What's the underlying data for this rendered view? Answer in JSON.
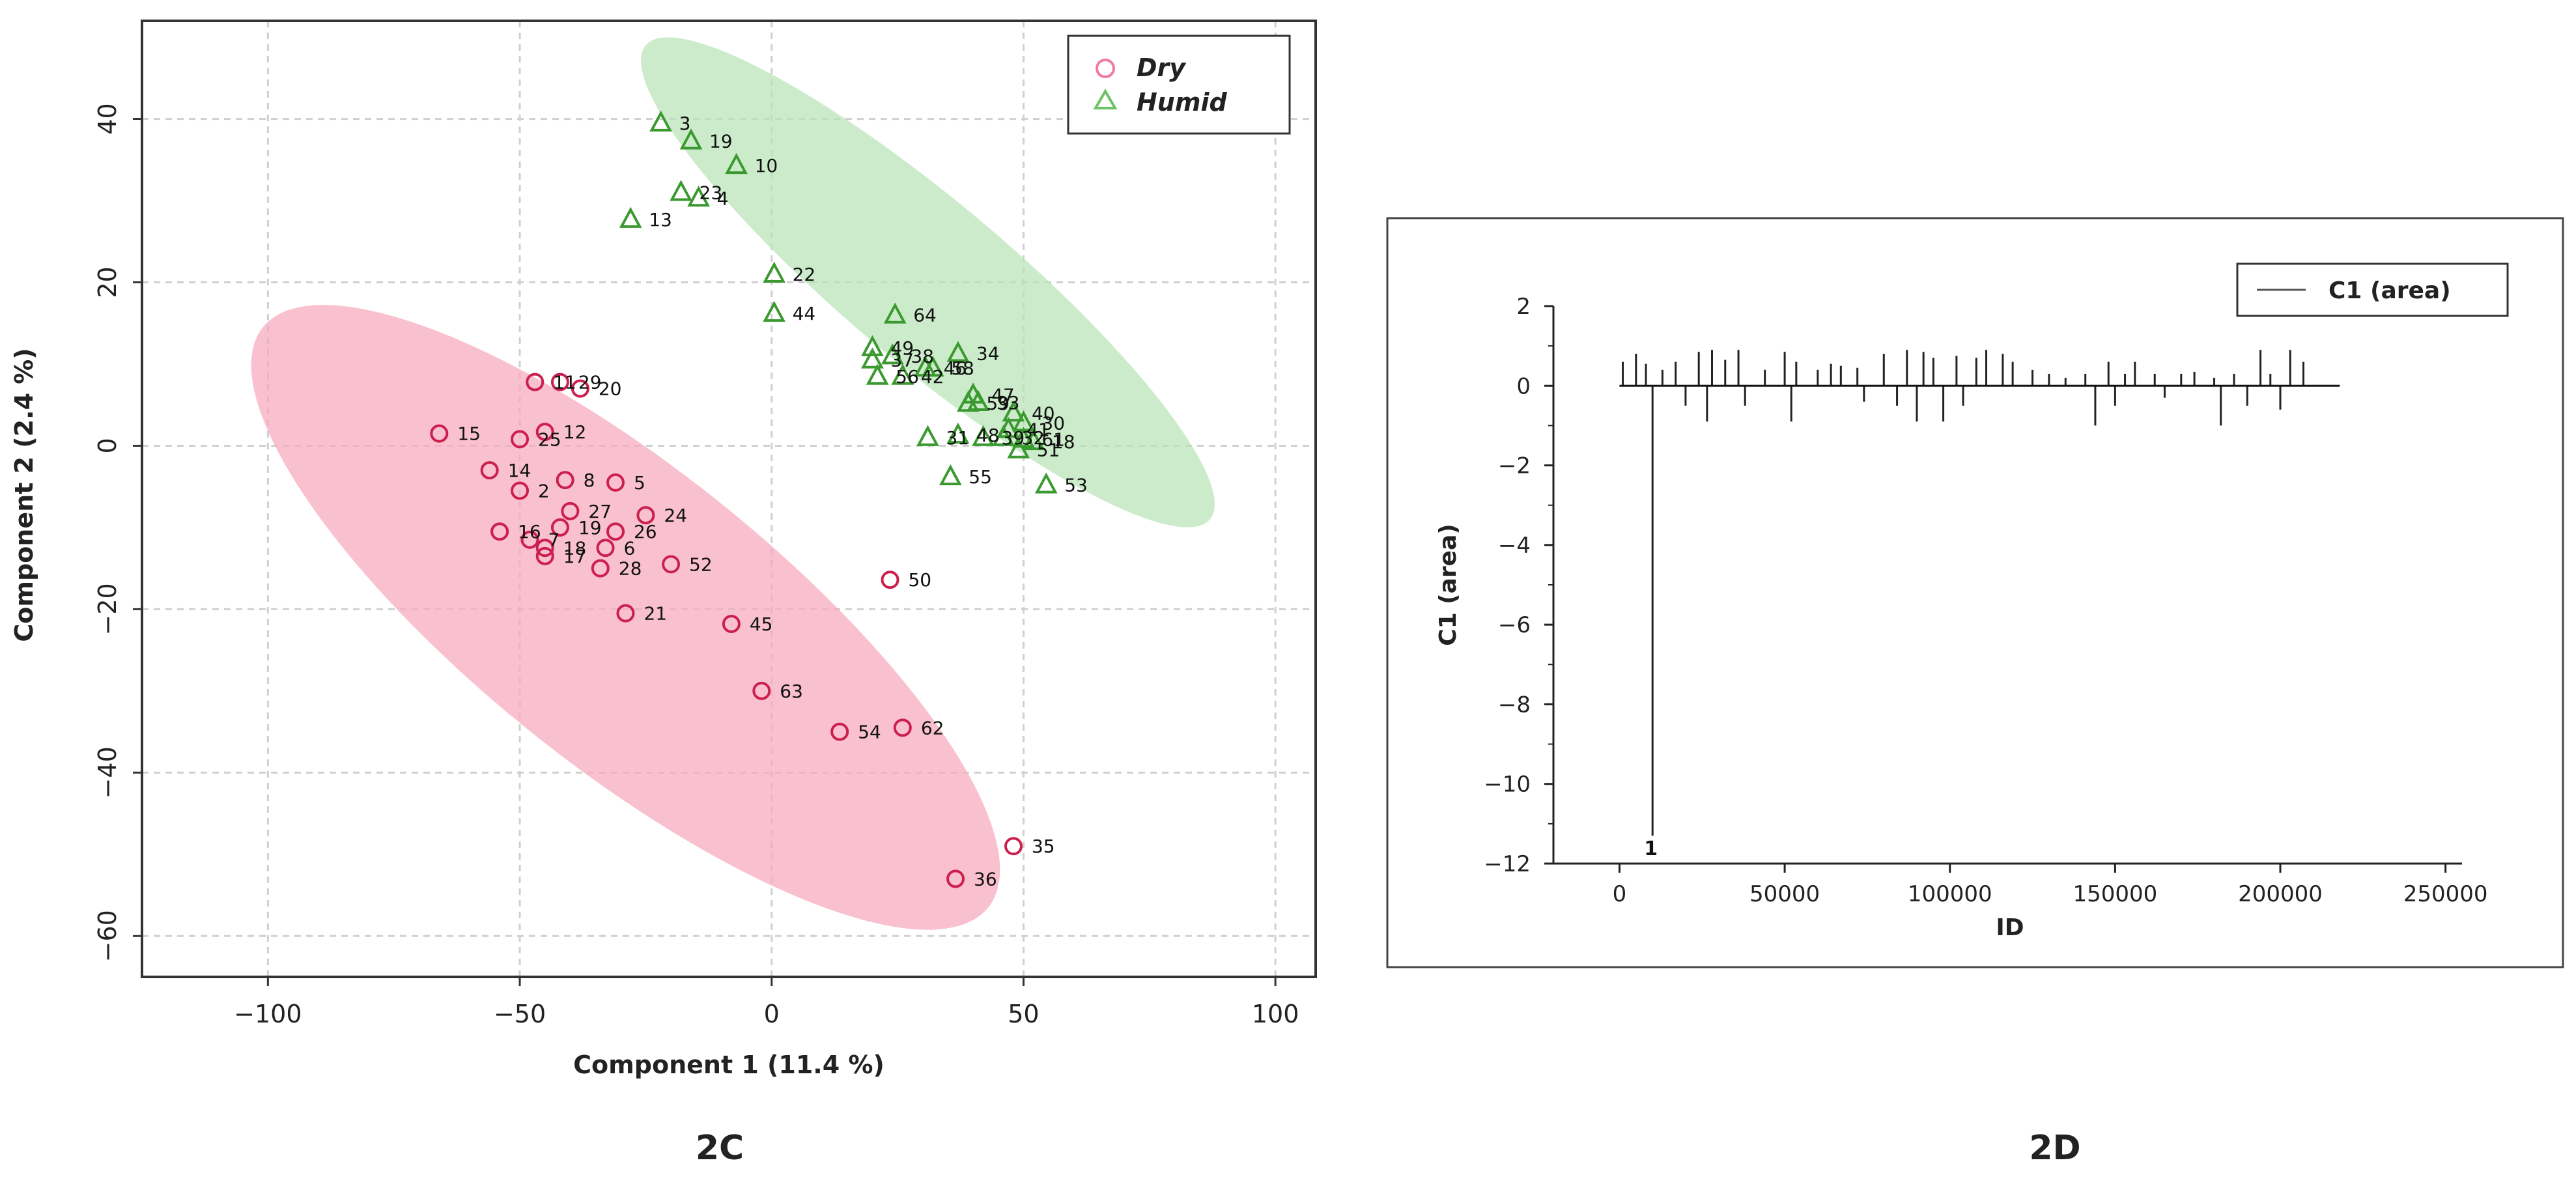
{
  "chart_data": [
    {
      "type": "scatter",
      "panel_label": "2C",
      "xlabel": "Component 1 (11.4 %)",
      "ylabel": "Component 2 (2.4 %)",
      "xlim": [
        -125,
        108
      ],
      "ylim": [
        -65,
        52
      ],
      "xticks": [
        -100,
        -50,
        0,
        50,
        100
      ],
      "yticks": [
        40,
        20,
        0,
        -20,
        -40,
        -60
      ],
      "xtick_labels": [
        "−100",
        "−50",
        "0",
        "50",
        "100"
      ],
      "ytick_labels": [
        "40",
        "20",
        "0",
        "−20",
        "−40",
        "−60"
      ],
      "grid": true,
      "legend": {
        "position": "top-right",
        "entries": [
          "Dry",
          "Humid"
        ]
      },
      "ellipses": [
        {
          "series": "Dry",
          "color": "#f7a9bd",
          "center": [
            -29,
            -21
          ],
          "points_on_edge": [
            [
              -100,
              21
            ],
            [
              44,
              -50
            ]
          ]
        },
        {
          "series": "Humid",
          "color": "#b9e3b5",
          "center": [
            31,
            20
          ],
          "points_on_edge": [
            [
              -32,
              40
            ],
            [
              80,
              -18
            ]
          ]
        }
      ],
      "series": [
        {
          "name": "Dry",
          "marker": "circle",
          "color": "#cc1f4e",
          "points": [
            {
              "x": -66,
              "y": 1.5,
              "label": "15"
            },
            {
              "x": -47,
              "y": 7.8,
              "label": "11"
            },
            {
              "x": -42,
              "y": 7.8,
              "label": "29"
            },
            {
              "x": -38,
              "y": 7,
              "label": "20"
            },
            {
              "x": -45,
              "y": 1.7,
              "label": "12"
            },
            {
              "x": -50,
              "y": 0.8,
              "label": "25"
            },
            {
              "x": -56,
              "y": -3,
              "label": "14"
            },
            {
              "x": -50,
              "y": -5.5,
              "label": "2"
            },
            {
              "x": -41,
              "y": -4.2,
              "label": "8"
            },
            {
              "x": -31,
              "y": -4.5,
              "label": "5"
            },
            {
              "x": -40,
              "y": -8,
              "label": "27"
            },
            {
              "x": -25,
              "y": -8.5,
              "label": "24"
            },
            {
              "x": -54,
              "y": -10.5,
              "label": "16"
            },
            {
              "x": -42,
              "y": -10,
              "label": "19"
            },
            {
              "x": -31,
              "y": -10.5,
              "label": "26"
            },
            {
              "x": -48,
              "y": -11.5,
              "label": "7"
            },
            {
              "x": -45,
              "y": -12.5,
              "label": "18"
            },
            {
              "x": -45,
              "y": -13.5,
              "label": "17"
            },
            {
              "x": -33,
              "y": -12.5,
              "label": "6"
            },
            {
              "x": -34,
              "y": -15,
              "label": "28"
            },
            {
              "x": -20,
              "y": -14.5,
              "label": "52"
            },
            {
              "x": -29,
              "y": -20.5,
              "label": "21"
            },
            {
              "x": -8,
              "y": -21.8,
              "label": "45"
            },
            {
              "x": 23.5,
              "y": -16.4,
              "label": "50"
            },
            {
              "x": -2,
              "y": -30,
              "label": "63"
            },
            {
              "x": 13.5,
              "y": -35,
              "label": "54"
            },
            {
              "x": 26,
              "y": -34.5,
              "label": "62"
            },
            {
              "x": 48,
              "y": -49,
              "label": "35"
            },
            {
              "x": 36.5,
              "y": -53,
              "label": "36"
            }
          ]
        },
        {
          "name": "Humid",
          "marker": "triangle",
          "color": "#3a9a2f",
          "points": [
            {
              "x": -22,
              "y": 39.5,
              "label": "3"
            },
            {
              "x": -16,
              "y": 37.3,
              "label": "19"
            },
            {
              "x": -7,
              "y": 34.3,
              "label": "10"
            },
            {
              "x": -18,
              "y": 31,
              "label": "23"
            },
            {
              "x": -14.5,
              "y": 30.3,
              "label": "4"
            },
            {
              "x": -28,
              "y": 27.7,
              "label": "13"
            },
            {
              "x": 0.5,
              "y": 21,
              "label": "22"
            },
            {
              "x": 0.5,
              "y": 16.2,
              "label": "44"
            },
            {
              "x": 24.5,
              "y": 16,
              "label": "64"
            },
            {
              "x": 20,
              "y": 12,
              "label": "49"
            },
            {
              "x": 24,
              "y": 11,
              "label": "38"
            },
            {
              "x": 37,
              "y": 11.3,
              "label": "34"
            },
            {
              "x": 20,
              "y": 10.5,
              "label": "37"
            },
            {
              "x": 30.5,
              "y": 9.5,
              "label": "46"
            },
            {
              "x": 32,
              "y": 9.5,
              "label": "58"
            },
            {
              "x": 21,
              "y": 8.5,
              "label": "56"
            },
            {
              "x": 26,
              "y": 8.5,
              "label": "42"
            },
            {
              "x": 40,
              "y": 6.2,
              "label": "47"
            },
            {
              "x": 39,
              "y": 5.2,
              "label": "59"
            },
            {
              "x": 41,
              "y": 5.3,
              "label": "33"
            },
            {
              "x": 48,
              "y": 4,
              "label": "40"
            },
            {
              "x": 50,
              "y": 2.8,
              "label": "30"
            },
            {
              "x": 47,
              "y": 2,
              "label": "41"
            },
            {
              "x": 31,
              "y": 1,
              "label": "31"
            },
            {
              "x": 37,
              "y": 1.3,
              "label": "48"
            },
            {
              "x": 42,
              "y": 1,
              "label": "39"
            },
            {
              "x": 46,
              "y": 1,
              "label": "32"
            },
            {
              "x": 50,
              "y": 0.8,
              "label": "61"
            },
            {
              "x": 52,
              "y": 0.5,
              "label": "18"
            },
            {
              "x": 49,
              "y": -0.5,
              "label": "51"
            },
            {
              "x": 35.5,
              "y": -3.8,
              "label": "55"
            },
            {
              "x": 54.5,
              "y": -4.8,
              "label": "53"
            }
          ]
        }
      ]
    },
    {
      "type": "bar",
      "panel_label": "2D",
      "xlabel": "ID",
      "ylabel": "C1 (area)",
      "xlim": [
        -20000,
        255000
      ],
      "ylim": [
        -12,
        2
      ],
      "xticks": [
        0,
        50000,
        100000,
        150000,
        200000,
        250000
      ],
      "yticks": [
        2,
        0,
        -2,
        -4,
        -6,
        -8,
        -10,
        -12
      ],
      "xtick_labels": [
        "0",
        "50000",
        "100000",
        "150000",
        "200000",
        "250000"
      ],
      "ytick_labels": [
        "2",
        "0",
        "−2",
        "−4",
        "−6",
        "−8",
        "−10",
        "−12"
      ],
      "legend": {
        "position": "top-right",
        "entries": [
          "C1 (area)"
        ]
      },
      "baseline_range": [
        0,
        218000
      ],
      "annotation": {
        "text": "1",
        "x": 9500,
        "y": -11.3
      },
      "series": [
        {
          "name": "C1 (area)",
          "x": [
            1000,
            5000,
            8000,
            10000,
            13000,
            17000,
            20000,
            24000,
            26500,
            28000,
            32000,
            36000,
            38000,
            44000,
            50000,
            52000,
            53500,
            60000,
            64000,
            67000,
            72000,
            74000,
            80000,
            84000,
            87000,
            90000,
            92000,
            95000,
            98000,
            102000,
            104000,
            108000,
            111000,
            116000,
            119000,
            125000,
            130000,
            135000,
            141000,
            144000,
            148000,
            150000,
            153000,
            156000,
            162000,
            165000,
            170000,
            174000,
            180000,
            182000,
            186000,
            190000,
            194000,
            197000,
            200000,
            203000,
            207000
          ],
          "values": [
            0.6,
            0.8,
            0.55,
            -11.3,
            0.4,
            0.6,
            -0.5,
            0.85,
            -0.9,
            0.9,
            0.65,
            0.9,
            -0.5,
            0.4,
            0.85,
            -0.9,
            0.6,
            0.4,
            0.55,
            0.5,
            0.45,
            -0.4,
            0.8,
            -0.5,
            0.9,
            -0.9,
            0.85,
            0.7,
            -0.9,
            0.75,
            -0.5,
            0.7,
            0.9,
            0.8,
            0.6,
            0.4,
            0.3,
            0.2,
            0.3,
            -1.0,
            0.6,
            -0.5,
            0.3,
            0.6,
            0.3,
            -0.3,
            0.3,
            0.35,
            0.2,
            -1.0,
            0.3,
            -0.5,
            0.9,
            0.3,
            -0.6,
            0.9,
            0.6
          ]
        }
      ]
    }
  ]
}
